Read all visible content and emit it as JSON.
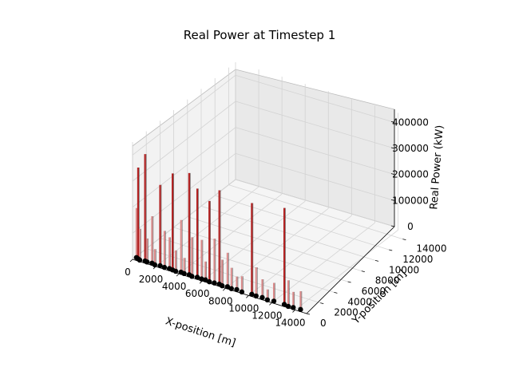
{
  "chart_data": {
    "type": "bar3d",
    "title": "Real Power at Timestep 1",
    "xlabel": "X-position [m]",
    "ylabel": "Y-position [m]",
    "zlabel": "Real Power (kW)",
    "xlim": [
      0,
      15000
    ],
    "ylim": [
      0,
      15000
    ],
    "zlim": [
      0,
      450000
    ],
    "xticks": [
      "0",
      "2000",
      "4000",
      "6000",
      "8000",
      "10000",
      "12000",
      "14000"
    ],
    "yticks": [
      "0",
      "2000",
      "4000",
      "6000",
      "8000",
      "10000",
      "12000",
      "14000"
    ],
    "zticks": [
      "0",
      "100000",
      "200000",
      "300000",
      "400000"
    ],
    "grid": true,
    "bar_color": "#b22222",
    "point_color": "#000000",
    "bars": [
      {
        "x": 100,
        "y": 400,
        "z": 190000
      },
      {
        "x": 300,
        "y": 300,
        "z": 350000
      },
      {
        "x": 500,
        "y": 200,
        "z": 120000
      },
      {
        "x": 900,
        "y": 300,
        "z": 410000
      },
      {
        "x": 1100,
        "y": 250,
        "z": 90000
      },
      {
        "x": 1500,
        "y": 300,
        "z": 180000
      },
      {
        "x": 1800,
        "y": 200,
        "z": 60000
      },
      {
        "x": 2200,
        "y": 300,
        "z": 310000
      },
      {
        "x": 2600,
        "y": 250,
        "z": 140000
      },
      {
        "x": 3000,
        "y": 300,
        "z": 120000
      },
      {
        "x": 3300,
        "y": 250,
        "z": 370000
      },
      {
        "x": 3600,
        "y": 200,
        "z": 80000
      },
      {
        "x": 4000,
        "y": 300,
        "z": 200000
      },
      {
        "x": 4300,
        "y": 250,
        "z": 60000
      },
      {
        "x": 4700,
        "y": 300,
        "z": 390000
      },
      {
        "x": 5000,
        "y": 200,
        "z": 150000
      },
      {
        "x": 5400,
        "y": 300,
        "z": 340000
      },
      {
        "x": 5800,
        "y": 250,
        "z": 150000
      },
      {
        "x": 6100,
        "y": 300,
        "z": 70000
      },
      {
        "x": 6500,
        "y": 200,
        "z": 310000
      },
      {
        "x": 6900,
        "y": 250,
        "z": 170000
      },
      {
        "x": 7300,
        "y": 300,
        "z": 360000
      },
      {
        "x": 7600,
        "y": 200,
        "z": 100000
      },
      {
        "x": 8000,
        "y": 300,
        "z": 130000
      },
      {
        "x": 8400,
        "y": 200,
        "z": 80000
      },
      {
        "x": 8800,
        "y": 300,
        "z": 50000
      },
      {
        "x": 9300,
        "y": 200,
        "z": 60000
      },
      {
        "x": 10100,
        "y": 300,
        "z": 350000
      },
      {
        "x": 10500,
        "y": 250,
        "z": 110000
      },
      {
        "x": 11000,
        "y": 300,
        "z": 70000
      },
      {
        "x": 11500,
        "y": 200,
        "z": 40000
      },
      {
        "x": 12000,
        "y": 300,
        "z": 70000
      },
      {
        "x": 12900,
        "y": 300,
        "z": 370000
      },
      {
        "x": 13300,
        "y": 200,
        "z": 100000
      },
      {
        "x": 13700,
        "y": 250,
        "z": 60000
      },
      {
        "x": 14300,
        "y": 300,
        "z": 70000
      }
    ]
  }
}
